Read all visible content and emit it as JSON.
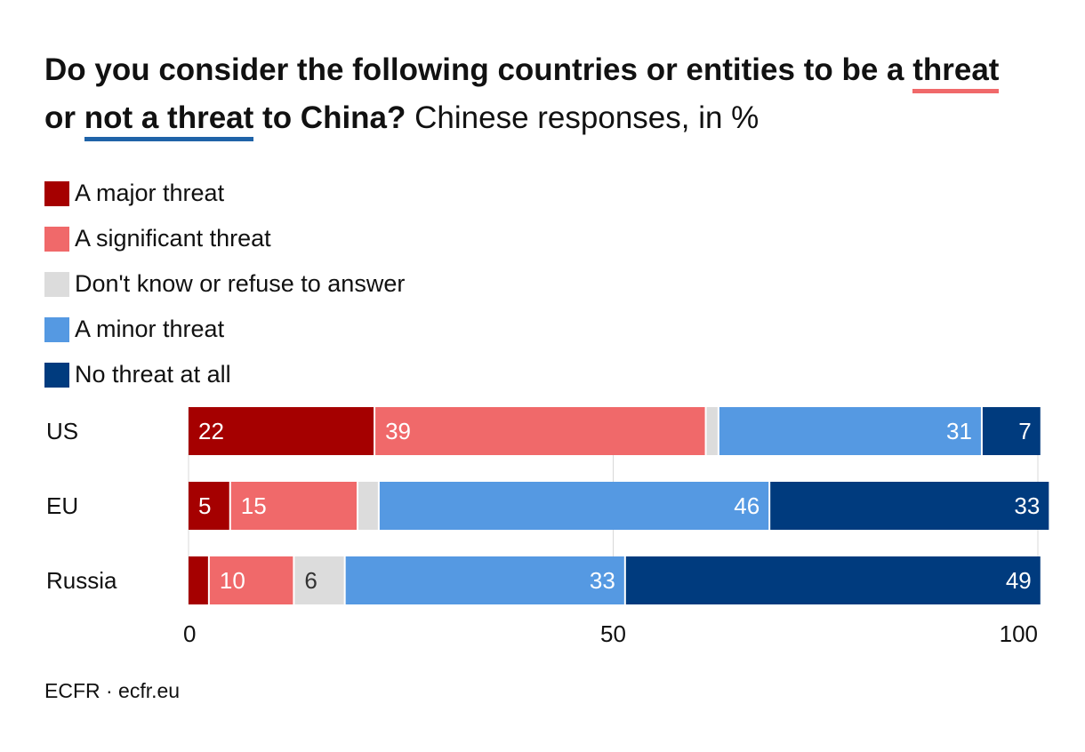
{
  "title": {
    "part1": "Do you consider the following countries or entities to be a ",
    "threat": "threat",
    "line2_or": "or ",
    "not_a_threat": "not a threat",
    "part2": " to China?",
    "subtitle": " Chinese responses, in %"
  },
  "legend": [
    {
      "label": "A major threat",
      "color": "#a50000"
    },
    {
      "label": "A significant threat",
      "color": "#f0696a"
    },
    {
      "label": "Don't know or refuse to answer",
      "color": "#dcdcdc"
    },
    {
      "label": "A minor threat",
      "color": "#5599e2"
    },
    {
      "label": "No threat at all",
      "color": "#003b7e"
    }
  ],
  "source": "ECFR · ecfr.eu",
  "chart_data": {
    "type": "bar",
    "orientation": "horizontal",
    "stacked": true,
    "categories": [
      "US",
      "EU",
      "Russia"
    ],
    "series": [
      {
        "name": "A major threat",
        "color": "#a50000",
        "values": [
          22,
          5,
          2.5
        ],
        "labels": [
          "22",
          "5",
          ""
        ]
      },
      {
        "name": "A significant threat",
        "color": "#f0696a",
        "values": [
          39,
          15,
          10
        ],
        "labels": [
          "39",
          "15",
          "10"
        ]
      },
      {
        "name": "Don't know or refuse to answer",
        "color": "#dcdcdc",
        "values": [
          1.5,
          2.5,
          6
        ],
        "labels": [
          "",
          "",
          "6"
        ]
      },
      {
        "name": "A minor threat",
        "color": "#5599e2",
        "values": [
          31,
          46,
          33
        ],
        "labels": [
          "31",
          "46",
          "33"
        ]
      },
      {
        "name": "No threat at all",
        "color": "#003b7e",
        "values": [
          7,
          33,
          49
        ],
        "labels": [
          "7",
          "33",
          "49"
        ]
      }
    ],
    "xlim": [
      0,
      100
    ],
    "xticks": [
      0,
      50,
      100
    ],
    "xtick_labels": [
      "0",
      "50",
      "100"
    ],
    "grid": true
  }
}
